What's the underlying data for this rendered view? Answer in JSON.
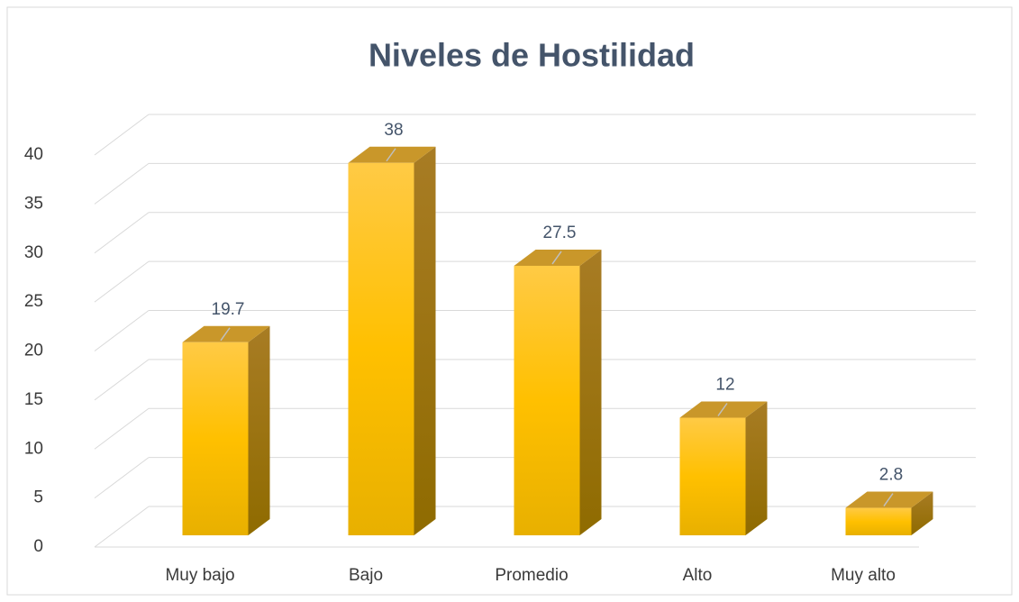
{
  "chart_data": {
    "type": "bar3d",
    "title": "Niveles de Hostilidad",
    "categories": [
      "Muy bajo",
      "Bajo",
      "Promedio",
      "Alto",
      "Muy alto"
    ],
    "values": [
      19.7,
      38,
      27.5,
      12,
      2.8
    ],
    "color": "#ffc000",
    "ylim": [
      0,
      40
    ],
    "yticks": [
      0,
      5,
      10,
      15,
      20,
      25,
      30,
      35,
      40
    ],
    "grid": true
  }
}
